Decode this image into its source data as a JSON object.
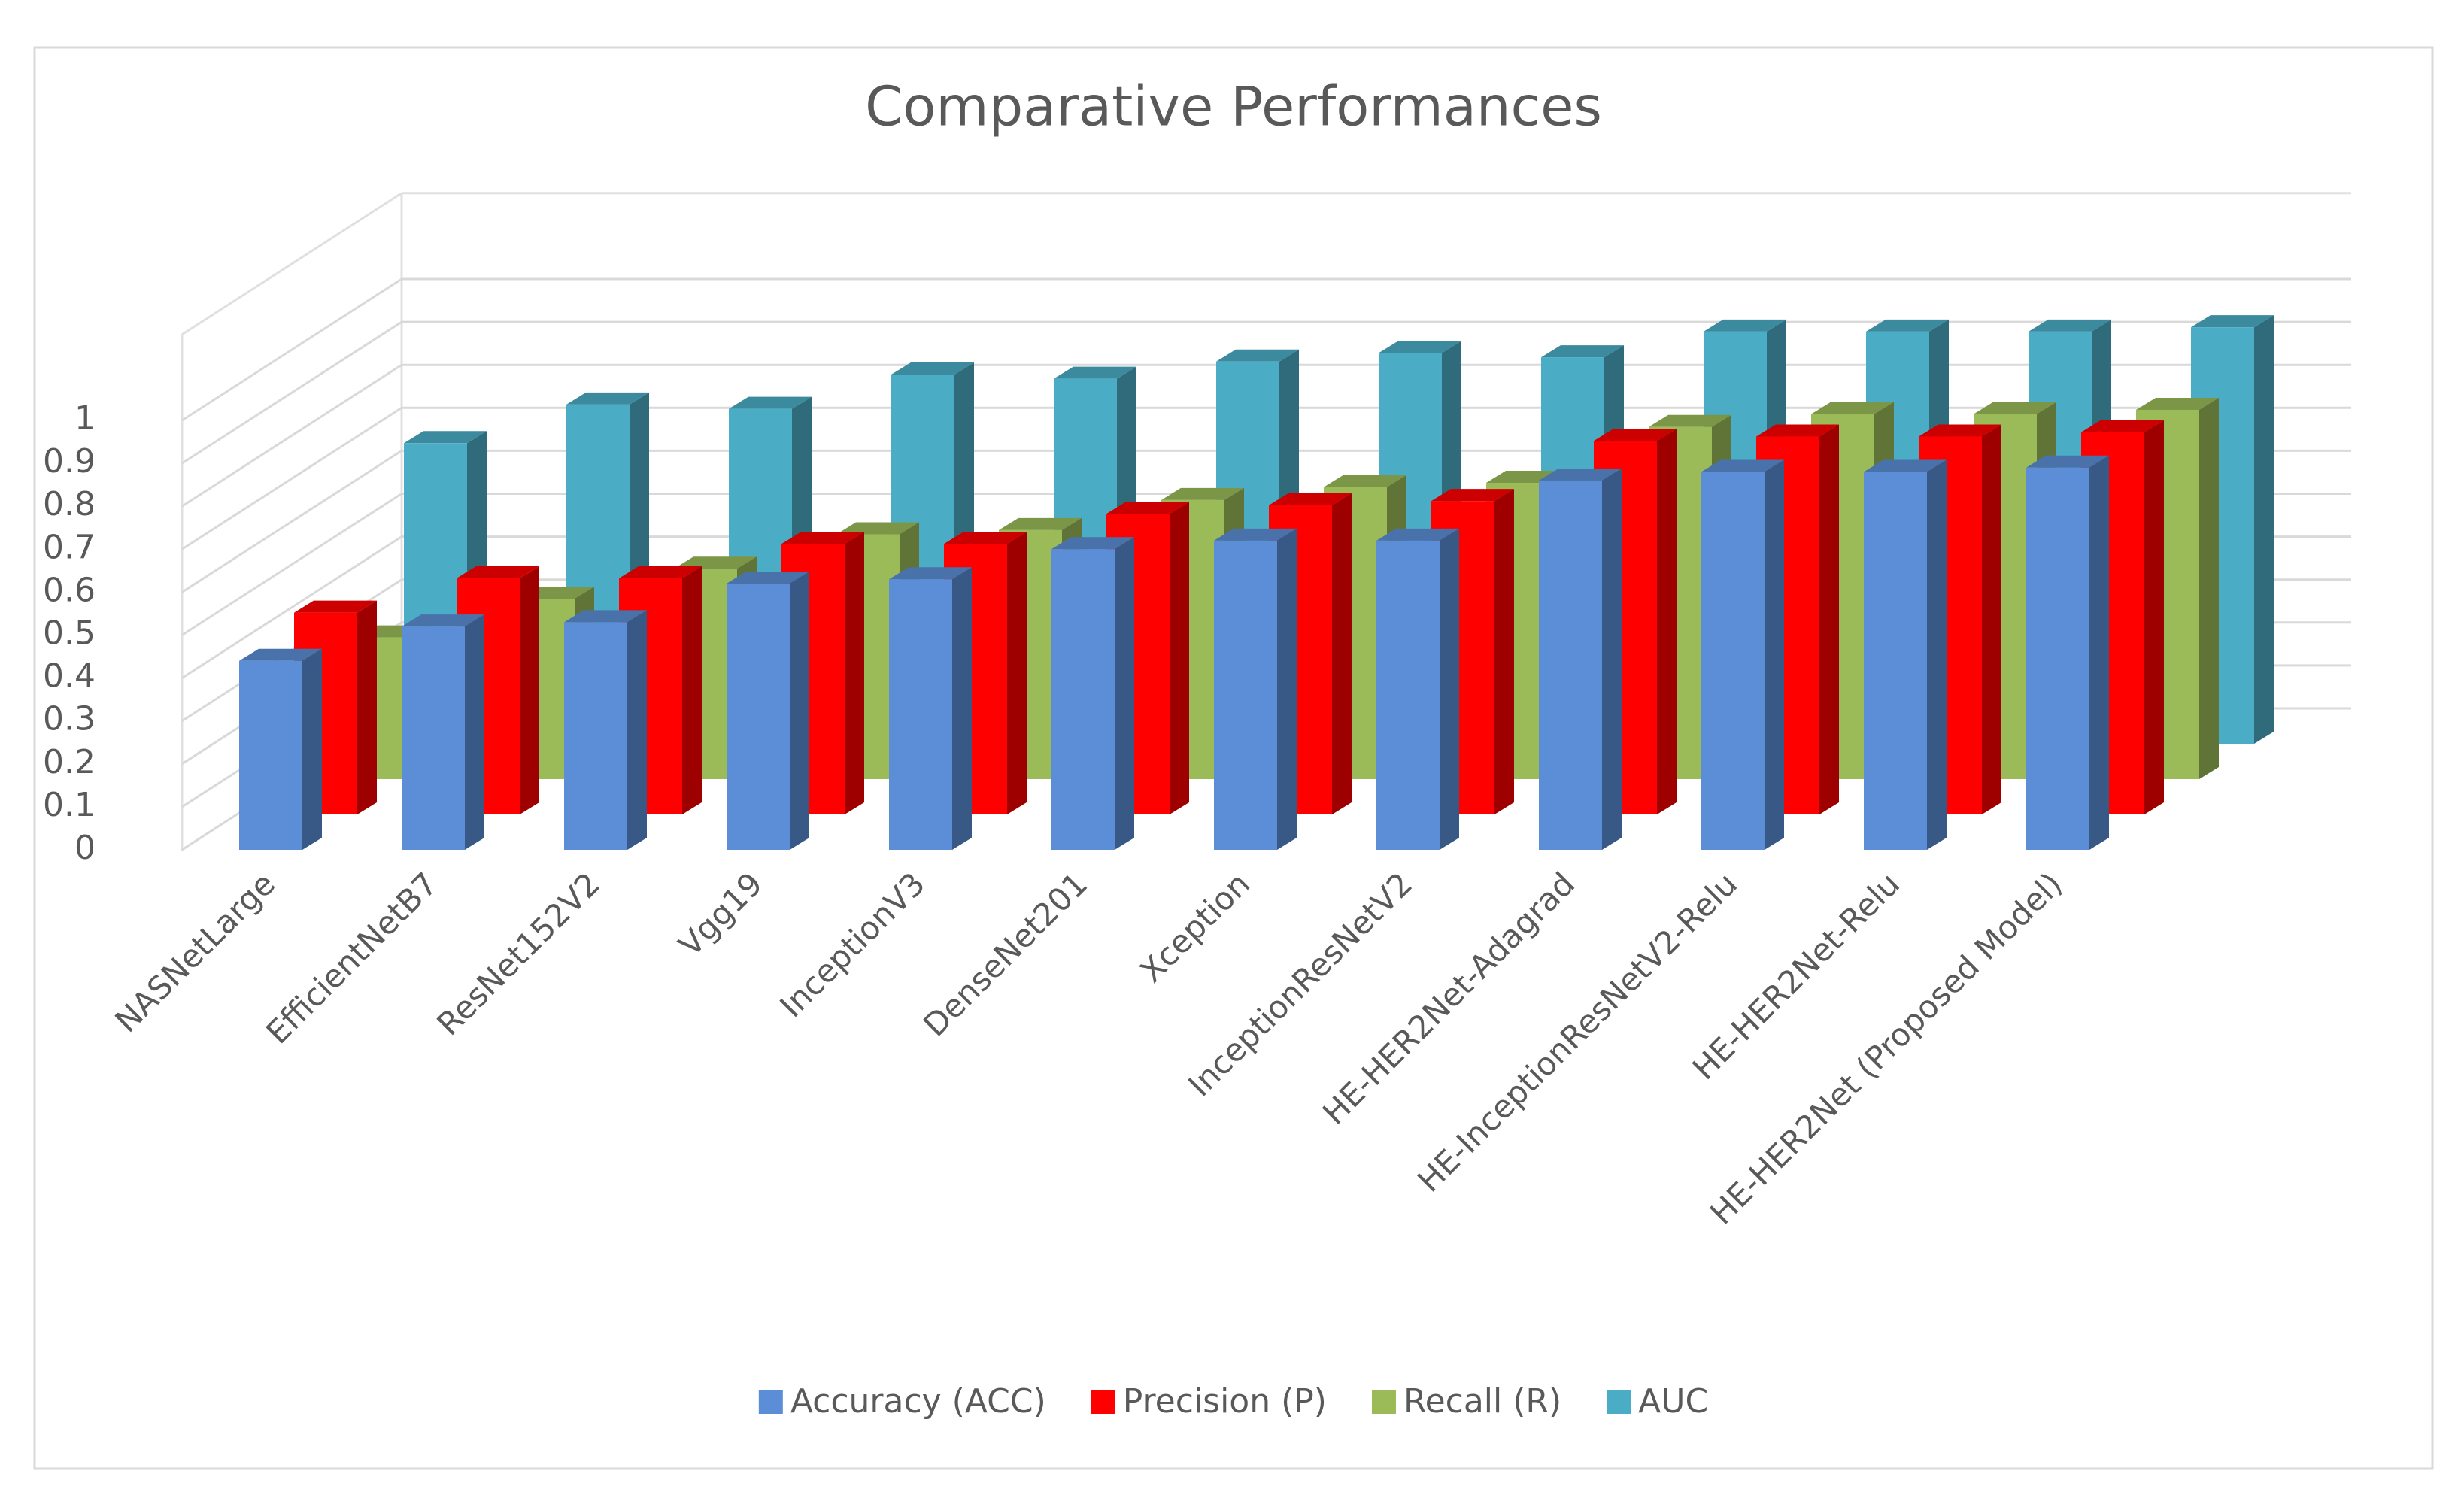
{
  "chart_data": {
    "type": "bar3d",
    "title": "Comparative Performances",
    "categories": [
      "NASNetLarge",
      "EfficientNetB7",
      "ResNet152V2",
      "Vgg19",
      "InceptionV3",
      "DenseNet201",
      "Xception",
      "InceptionResNetV2",
      "HE-HER2Net-Adagrad",
      "HE-InceptionResNetV2-Relu",
      "HE-HER2Net-Relu",
      "HE-HER2Net (Proposed Model)"
    ],
    "series": [
      {
        "name": "Accuracy (ACC)",
        "color": "#5b8ed6",
        "values": [
          0.44,
          0.52,
          0.53,
          0.62,
          0.63,
          0.7,
          0.72,
          0.72,
          0.86,
          0.88,
          0.88,
          0.89
        ]
      },
      {
        "name": "Precision (P)",
        "color": "#ff0000",
        "values": [
          0.47,
          0.55,
          0.55,
          0.63,
          0.63,
          0.7,
          0.72,
          0.73,
          0.87,
          0.88,
          0.88,
          0.89
        ]
      },
      {
        "name": "Recall (R)",
        "color": "#9bbb59",
        "values": [
          0.33,
          0.42,
          0.49,
          0.57,
          0.58,
          0.65,
          0.68,
          0.69,
          0.82,
          0.85,
          0.85,
          0.86
        ]
      },
      {
        "name": "AUC",
        "color": "#4bacc6",
        "values": [
          0.7,
          0.79,
          0.78,
          0.86,
          0.85,
          0.89,
          0.91,
          0.9,
          0.96,
          0.96,
          0.96,
          0.97
        ]
      }
    ],
    "ylim": [
      0,
      1.2
    ],
    "yticks": [
      0,
      0.1,
      0.2,
      0.3,
      0.4,
      0.5,
      0.6,
      0.7,
      0.8,
      0.9,
      1
    ],
    "grid": true,
    "legend": "bottom"
  }
}
